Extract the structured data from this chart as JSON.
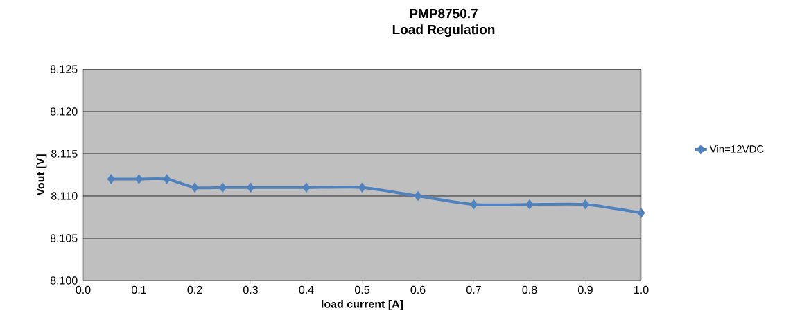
{
  "chart_data": {
    "type": "line",
    "title": "PMP8750.7",
    "subtitle": "Load Regulation",
    "xlabel": "load current [A]",
    "ylabel": "Vout [V]",
    "x": [
      0.05,
      0.1,
      0.15,
      0.2,
      0.25,
      0.3,
      0.4,
      0.5,
      0.6,
      0.7,
      0.8,
      0.9,
      1.0
    ],
    "series": [
      {
        "name": "Vin=12VDC",
        "color": "#4f81bd",
        "values": [
          8.112,
          8.112,
          8.112,
          8.111,
          8.111,
          8.111,
          8.111,
          8.111,
          8.11,
          8.109,
          8.109,
          8.109,
          8.108
        ]
      }
    ],
    "xlim": [
      0,
      1
    ],
    "ylim": [
      8.1,
      8.125
    ],
    "xticks": [
      {
        "value": 0,
        "label": "0.0"
      },
      {
        "value": 0.1,
        "label": "0.1"
      },
      {
        "value": 0.2,
        "label": "0.2"
      },
      {
        "value": 0.3,
        "label": "0.3"
      },
      {
        "value": 0.4,
        "label": "0.4"
      },
      {
        "value": 0.5,
        "label": "0.5"
      },
      {
        "value": 0.6,
        "label": "0.6"
      },
      {
        "value": 0.7,
        "label": "0.7"
      },
      {
        "value": 0.8,
        "label": "0.8"
      },
      {
        "value": 0.9,
        "label": "0.9"
      },
      {
        "value": 1,
        "label": "1.0"
      }
    ],
    "yticks": [
      {
        "value": 8.1,
        "label": "8.100"
      },
      {
        "value": 8.105,
        "label": "8.105"
      },
      {
        "value": 8.11,
        "label": "8.110"
      },
      {
        "value": 8.115,
        "label": "8.115"
      },
      {
        "value": 8.12,
        "label": "8.120"
      },
      {
        "value": 8.125,
        "label": "8.125"
      }
    ],
    "grid": "y",
    "legend": "right",
    "marker": "diamond",
    "line_style": "solid"
  }
}
